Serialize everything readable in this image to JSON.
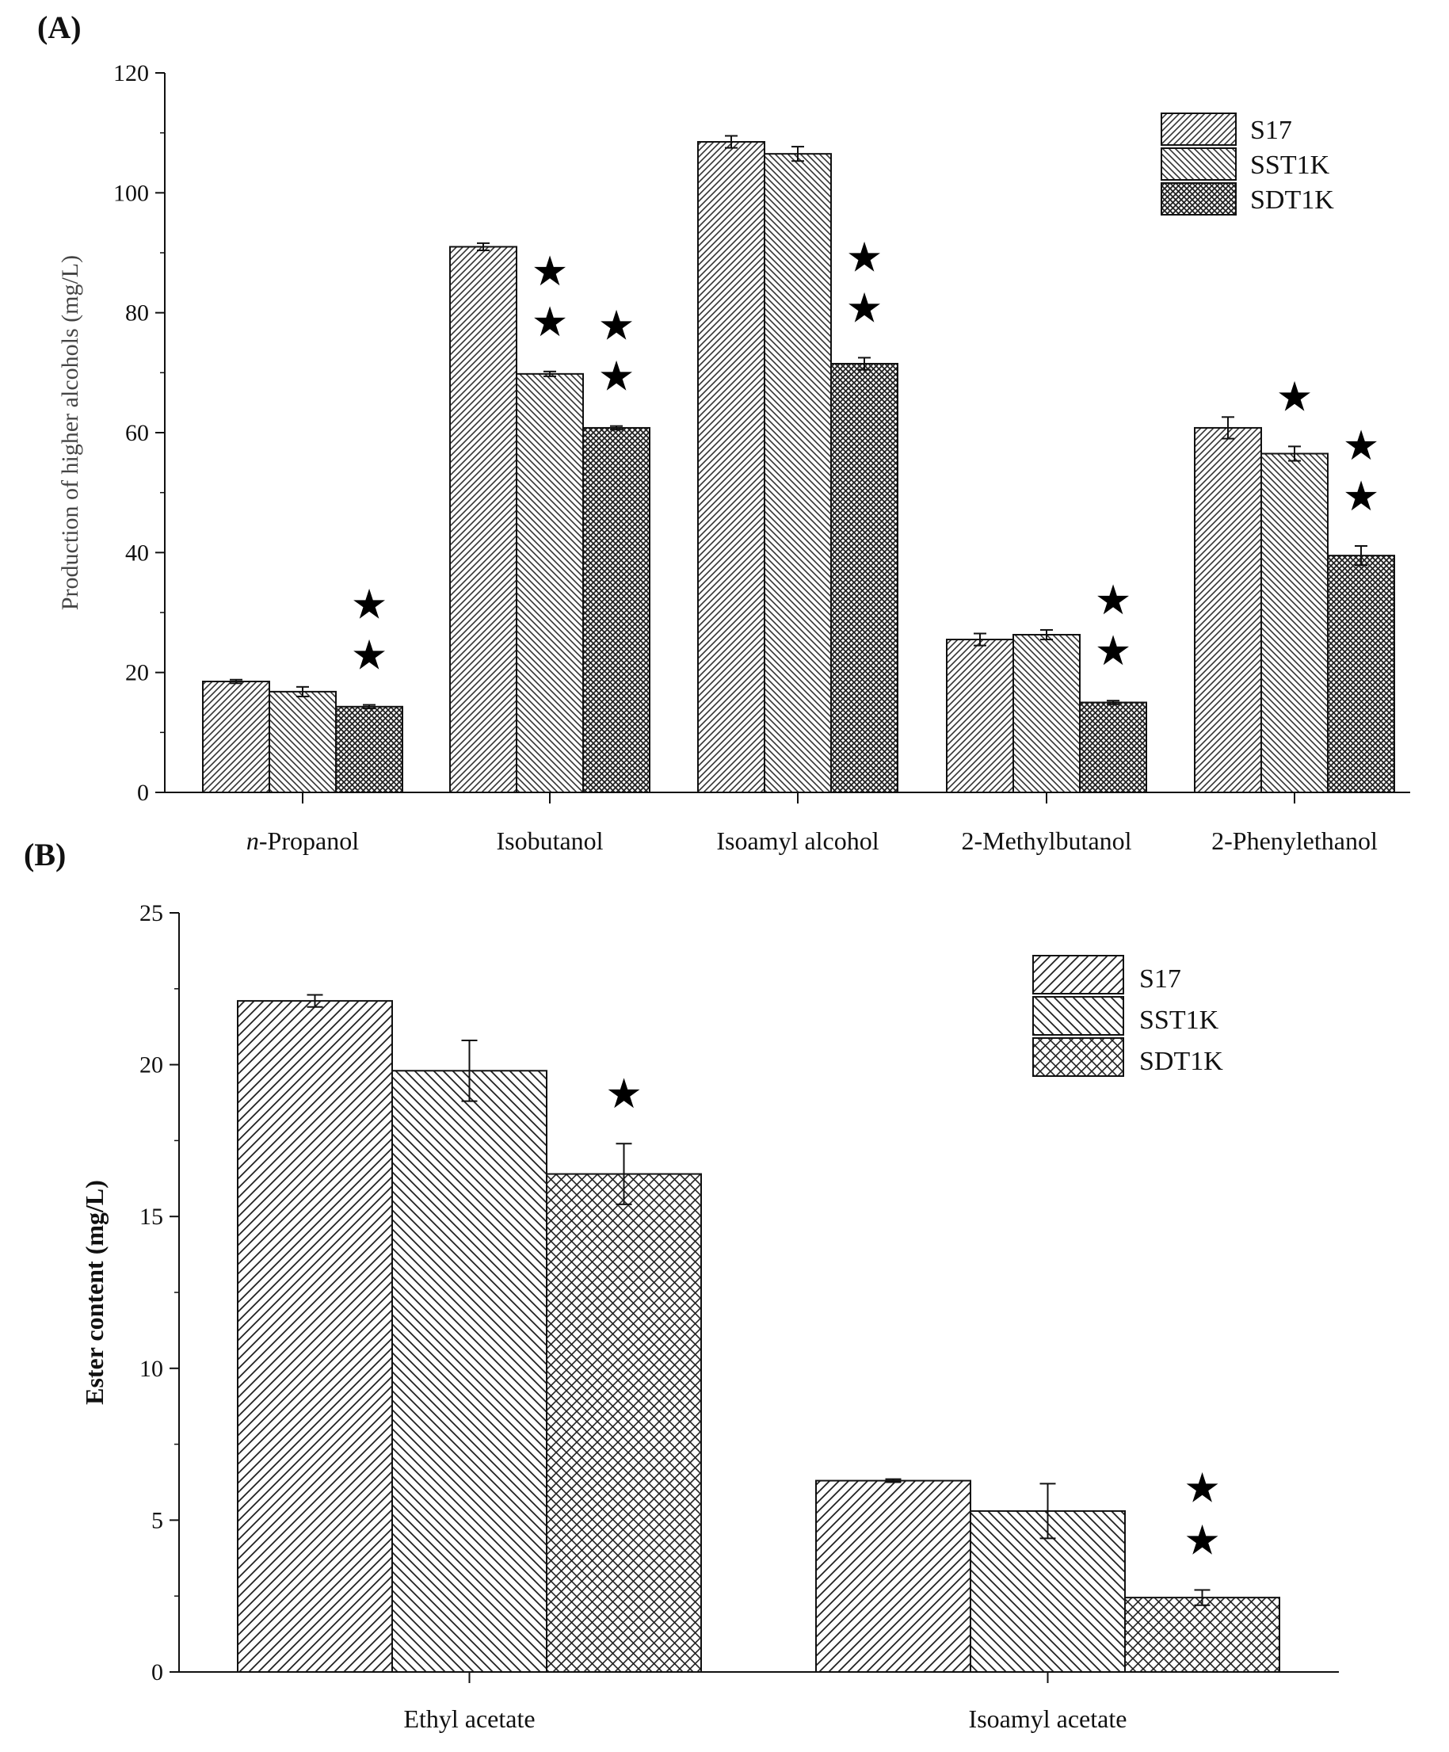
{
  "chart_data": [
    {
      "panel_label": "(A)",
      "type": "bar",
      "ylabel": "Production of higher alcohols (mg/L)",
      "xlabel": "",
      "ylim": [
        0,
        120
      ],
      "yticks": [
        0,
        20,
        40,
        60,
        80,
        100,
        120
      ],
      "categories": [
        "n-Propanol",
        "Isobutanol",
        "Isoamyl alcohol",
        "2-Methylbutanol",
        "2-Phenylethanol"
      ],
      "category_labels": [
        {
          "prefix": "n",
          "rest": "-Propanol"
        },
        {
          "prefix": "",
          "rest": "Isobutanol"
        },
        {
          "prefix": "",
          "rest": "Isoamyl alcohol"
        },
        {
          "prefix": "",
          "rest": "2-Methylbutanol"
        },
        {
          "prefix": "",
          "rest": "2-Phenylethanol"
        }
      ],
      "legend_position": "top-right",
      "series": [
        {
          "name": "S17",
          "pattern": "dense-diagonal",
          "values": [
            18.5,
            91.0,
            108.5,
            25.5,
            60.8
          ],
          "errors": [
            0.3,
            0.6,
            1.0,
            1.0,
            1.8
          ]
        },
        {
          "name": "SST1K",
          "pattern": "dense-backdiagonal",
          "values": [
            16.8,
            69.8,
            106.5,
            26.3,
            56.5
          ],
          "errors": [
            0.8,
            0.4,
            1.2,
            0.8,
            1.2
          ]
        },
        {
          "name": "SDT1K",
          "pattern": "dense-crosshatch",
          "values": [
            14.3,
            60.8,
            71.5,
            15.0,
            39.5
          ],
          "errors": [
            0.3,
            0.3,
            1.0,
            0.3,
            1.6
          ]
        }
      ],
      "significance": [
        {
          "category": 0,
          "series": 2,
          "stars": 2
        },
        {
          "category": 1,
          "series": 1,
          "stars": 2
        },
        {
          "category": 1,
          "series": 2,
          "stars": 2
        },
        {
          "category": 2,
          "series": 2,
          "stars": 2
        },
        {
          "category": 3,
          "series": 2,
          "stars": 2
        },
        {
          "category": 4,
          "series": 1,
          "stars": 1
        },
        {
          "category": 4,
          "series": 2,
          "stars": 2
        }
      ]
    },
    {
      "panel_label": "(B)",
      "type": "bar",
      "ylabel": "Ester content (mg/L)",
      "xlabel": "",
      "ylim": [
        0,
        25
      ],
      "yticks": [
        0,
        5,
        10,
        15,
        20,
        25
      ],
      "categories": [
        "Ethyl acetate",
        "Isoamyl acetate"
      ],
      "category_labels": [
        {
          "prefix": "",
          "rest": "Ethyl acetate"
        },
        {
          "prefix": "",
          "rest": "Isoamyl acetate"
        }
      ],
      "legend_position": "top-right",
      "series": [
        {
          "name": "S17",
          "pattern": "diagonal",
          "values": [
            22.1,
            6.3
          ],
          "errors": [
            0.2,
            0.05
          ]
        },
        {
          "name": "SST1K",
          "pattern": "backdiagonal",
          "values": [
            19.8,
            5.3
          ],
          "errors": [
            1.0,
            0.9
          ]
        },
        {
          "name": "SDT1K",
          "pattern": "crosshatch",
          "values": [
            16.4,
            2.45
          ],
          "errors": [
            1.0,
            0.25
          ]
        }
      ],
      "significance": [
        {
          "category": 0,
          "series": 2,
          "stars": 1
        },
        {
          "category": 1,
          "series": 2,
          "stars": 2
        }
      ]
    }
  ]
}
